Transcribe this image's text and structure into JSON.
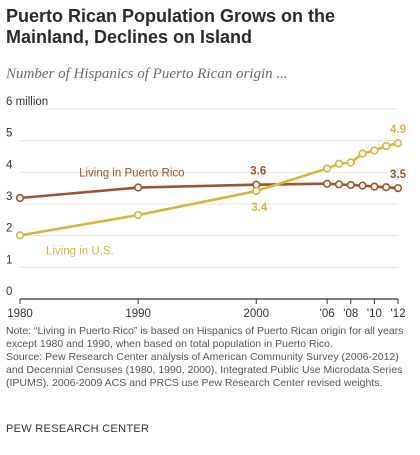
{
  "title": "Puerto Rican Population Grows on the Mainland, Declines on Island",
  "subtitle": "Number of Hispanics of Puerto Rican origin ...",
  "note": "Note: “Living in Puerto Rico” is based on Hispanics of Puerto Rican origin for all years except 1980 and 1990, when based on total population in Puerto Rico.",
  "source": "Source: Pew Research Center analysis of American Community Survey (2006-2012) and Decennial Censuses (1980, 1990, 2000), Integrated Public Use Microdata Series (IPUMS). 2006-2009 ACS and PRCS use Pew Research Center revised weights.",
  "brand": "PEW RESEARCH CENTER",
  "colors": {
    "puerto_rico": "#a0522d",
    "us": "#d9b53e",
    "grid": "#e3e3e3",
    "axis": "#333333"
  },
  "chart_data": {
    "type": "line",
    "xlim": [
      1980,
      2012
    ],
    "ylim": [
      0,
      6
    ],
    "x_ticks": [
      {
        "value": 1980,
        "label": "1980"
      },
      {
        "value": 1990,
        "label": "1990"
      },
      {
        "value": 2000,
        "label": "2000"
      },
      {
        "value": 2006,
        "label": "'06"
      },
      {
        "value": 2008,
        "label": "'08"
      },
      {
        "value": 2010,
        "label": "'10"
      },
      {
        "value": 2012,
        "label": "'12"
      }
    ],
    "y_ticks": [
      {
        "value": 0,
        "label": "0"
      },
      {
        "value": 1,
        "label": "1"
      },
      {
        "value": 2,
        "label": "2"
      },
      {
        "value": 3,
        "label": "3"
      },
      {
        "value": 4,
        "label": "4"
      },
      {
        "value": 5,
        "label": "5"
      },
      {
        "value": 6,
        "label": "6 million"
      }
    ],
    "grid": true,
    "series": [
      {
        "name": "Living in Puerto Rico",
        "color": "#a0522d",
        "x": [
          1980,
          1990,
          2000,
          2006,
          2007,
          2008,
          2009,
          2010,
          2011,
          2012
        ],
        "values": [
          3.19,
          3.52,
          3.61,
          3.64,
          3.62,
          3.6,
          3.58,
          3.55,
          3.53,
          3.5
        ],
        "data_labels": [
          {
            "x": 2000,
            "text": "3.6"
          },
          {
            "x": 2012,
            "text": "3.5"
          }
        ]
      },
      {
        "name": "Living in U.S.",
        "color": "#d9b53e",
        "x": [
          1980,
          1990,
          2000,
          2006,
          2007,
          2008,
          2009,
          2010,
          2011,
          2012
        ],
        "values": [
          2.01,
          2.65,
          3.41,
          4.12,
          4.27,
          4.31,
          4.59,
          4.69,
          4.83,
          4.92
        ],
        "data_labels": [
          {
            "x": 2000,
            "text": "3.4"
          },
          {
            "x": 2012,
            "text": "4.9"
          }
        ]
      }
    ]
  }
}
